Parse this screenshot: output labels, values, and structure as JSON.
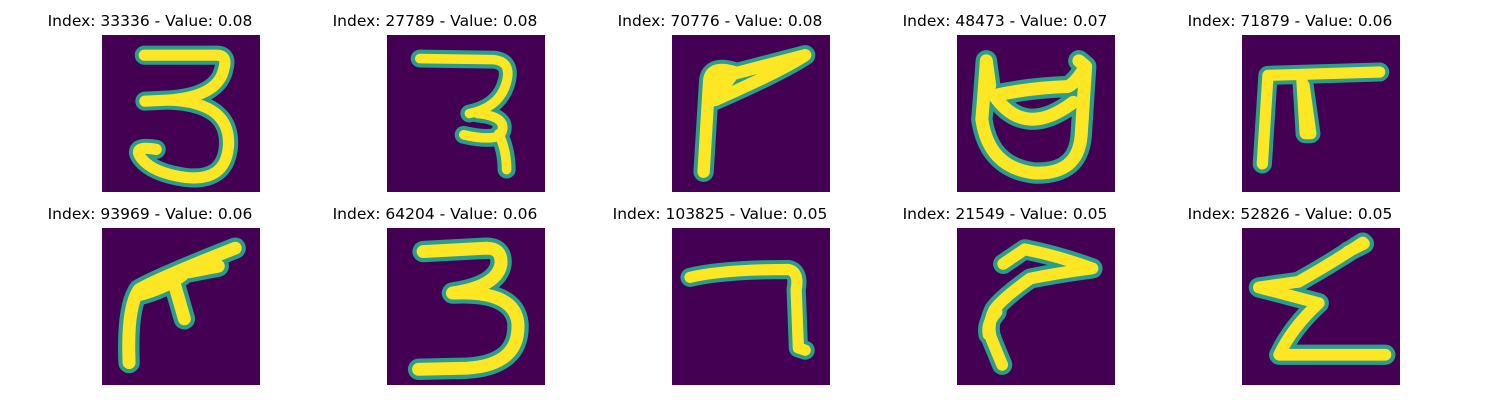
{
  "colors": {
    "background": "#440154",
    "stroke_core": "#fde725",
    "stroke_edge": "#2a9d8c",
    "stroke_mid": "#6ccd5a"
  },
  "panels": [
    {
      "title": "Index: 33336 - Value: 0.08",
      "glyph": "digit-3-a"
    },
    {
      "title": "Index: 27789 - Value: 0.08",
      "glyph": "char-ra"
    },
    {
      "title": "Index: 70776 - Value: 0.08",
      "glyph": "char-flag"
    },
    {
      "title": "Index: 48473 - Value: 0.07",
      "glyph": "char-cup"
    },
    {
      "title": "Index: 71879 - Value: 0.06",
      "glyph": "char-pi"
    },
    {
      "title": "Index: 93969 - Value: 0.06",
      "glyph": "char-pi-slant"
    },
    {
      "title": "Index: 64204 - Value: 0.06",
      "glyph": "digit-3-b"
    },
    {
      "title": "Index: 103825 - Value: 0.05",
      "glyph": "char-seven"
    },
    {
      "title": "Index: 21549 - Value: 0.05",
      "glyph": "char-hook"
    },
    {
      "title": "Index: 52826 - Value: 0.05",
      "glyph": "char-epsilon"
    }
  ]
}
